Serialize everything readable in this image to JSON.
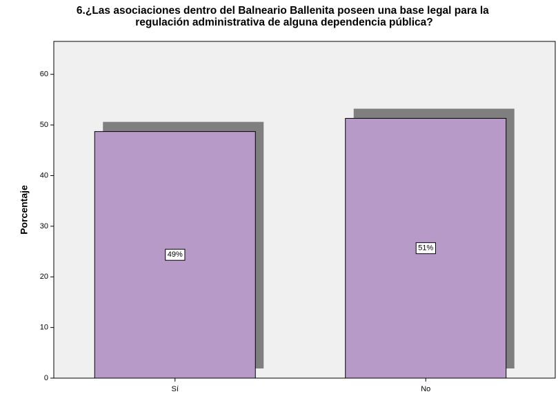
{
  "chart_data": {
    "type": "bar",
    "title": [
      "6.¿Las asociaciones dentro del Balneario Ballenita poseen una base legal para la",
      "regulación administrativa de alguna dependencia pública?"
    ],
    "y_label": "Porcentaje",
    "categories": [
      "Sí",
      "No"
    ],
    "values": [
      48.7,
      51.3
    ],
    "value_labels": [
      "49%",
      "51%"
    ],
    "color": "#b89ac8",
    "shadow_color": "#7f7f7f",
    "ylim": [
      0,
      66.5
    ],
    "yticks": [
      0,
      10,
      20,
      30,
      40,
      50,
      60
    ]
  }
}
